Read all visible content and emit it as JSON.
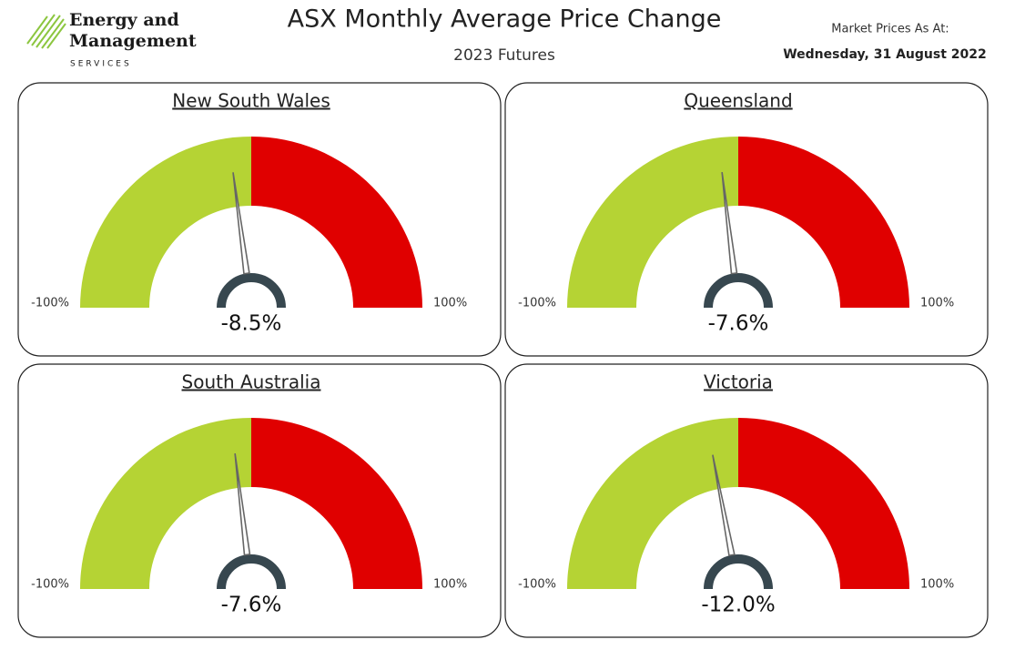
{
  "header": {
    "logo_line1": "Energy and",
    "logo_line2": "Management",
    "logo_line3": "SERVICES",
    "title": "ASX Monthly Average Price Change",
    "subtitle": "2023 Futures",
    "date_label": "Market Prices As At:",
    "date": "Wednesday, 31 August 2022"
  },
  "chart_data": [
    {
      "type": "gauge",
      "title": "New South Wales",
      "values": [
        -8.5
      ],
      "value_labels": [
        "-8.5%"
      ],
      "ylim": [
        -100,
        100
      ],
      "yticks": [
        {
          "value": -100,
          "label": "-100%"
        },
        {
          "value": 100,
          "label": "100%"
        }
      ],
      "colors": [
        "#b5d334",
        "#e00000"
      ],
      "needle_color": "#666666",
      "hub_color": "#37474f"
    },
    {
      "type": "gauge",
      "title": "Queensland",
      "values": [
        -7.6
      ],
      "value_labels": [
        "-7.6%"
      ],
      "ylim": [
        -100,
        100
      ],
      "yticks": [
        {
          "value": -100,
          "label": "-100%"
        },
        {
          "value": 100,
          "label": "100%"
        }
      ],
      "colors": [
        "#b5d334",
        "#e00000"
      ],
      "needle_color": "#666666",
      "hub_color": "#37474f"
    },
    {
      "type": "gauge",
      "title": "South Australia",
      "values": [
        -7.6
      ],
      "value_labels": [
        "-7.6%"
      ],
      "ylim": [
        -100,
        100
      ],
      "yticks": [
        {
          "value": -100,
          "label": "-100%"
        },
        {
          "value": 100,
          "label": "100%"
        }
      ],
      "colors": [
        "#b5d334",
        "#e00000"
      ],
      "needle_color": "#666666",
      "hub_color": "#37474f"
    },
    {
      "type": "gauge",
      "title": "Victoria",
      "values": [
        -12.0
      ],
      "value_labels": [
        "-12.0%"
      ],
      "ylim": [
        -100,
        100
      ],
      "yticks": [
        {
          "value": -100,
          "label": "-100%"
        },
        {
          "value": 100,
          "label": "100%"
        }
      ],
      "colors": [
        "#b5d334",
        "#e00000"
      ],
      "needle_color": "#666666",
      "hub_color": "#37474f"
    }
  ]
}
